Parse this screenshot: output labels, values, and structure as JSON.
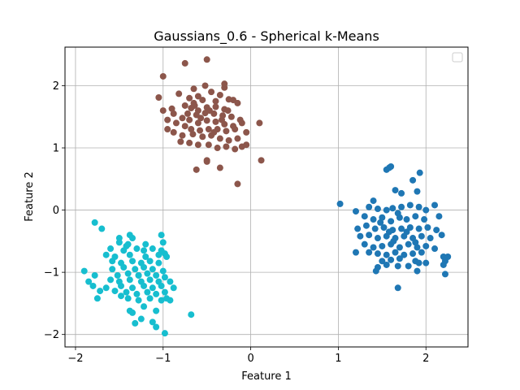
{
  "chart_data": {
    "type": "scatter",
    "title": "Gaussians_0.6 - Spherical k-Means",
    "xlabel": "Feature 1",
    "ylabel": "Feature 2",
    "xlim": [
      -2.12,
      2.48
    ],
    "ylim": [
      -2.2,
      2.62
    ],
    "xticks": [
      -2,
      -1,
      0,
      1,
      2
    ],
    "yticks": [
      -2,
      -1,
      0,
      1,
      2
    ],
    "xtick_labels": [
      "−2",
      "−1",
      "0",
      "1",
      "2"
    ],
    "ytick_labels": [
      "−2",
      "−1",
      "0",
      "1",
      "2"
    ],
    "grid": true,
    "legend": "top-right, empty",
    "series": [
      {
        "color": "#8c564b",
        "points": [
          [
            -0.5,
            2.42
          ],
          [
            -0.75,
            2.36
          ],
          [
            -1.0,
            2.15
          ],
          [
            -0.3,
            2.03
          ],
          [
            -0.3,
            1.97
          ],
          [
            -0.52,
            2.0
          ],
          [
            -0.65,
            1.95
          ],
          [
            -1.05,
            1.81
          ],
          [
            -0.82,
            1.87
          ],
          [
            -0.7,
            1.8
          ],
          [
            -0.6,
            1.83
          ],
          [
            -0.45,
            1.9
          ],
          [
            -0.35,
            1.85
          ],
          [
            -0.25,
            1.78
          ],
          [
            -0.4,
            1.75
          ],
          [
            -0.55,
            1.77
          ],
          [
            -0.65,
            1.72
          ],
          [
            -0.75,
            1.68
          ],
          [
            -0.9,
            1.63
          ],
          [
            -1.0,
            1.6
          ],
          [
            -0.68,
            1.64
          ],
          [
            -0.6,
            1.6
          ],
          [
            -0.5,
            1.65
          ],
          [
            -0.4,
            1.66
          ],
          [
            -0.3,
            1.62
          ],
          [
            -0.2,
            1.77
          ],
          [
            -0.15,
            1.72
          ],
          [
            -0.72,
            1.55
          ],
          [
            -0.62,
            1.53
          ],
          [
            -0.52,
            1.56
          ],
          [
            -0.42,
            1.55
          ],
          [
            -0.32,
            1.52
          ],
          [
            -0.22,
            1.5
          ],
          [
            -0.12,
            1.45
          ],
          [
            -0.78,
            1.48
          ],
          [
            -0.7,
            1.45
          ],
          [
            -0.6,
            1.4
          ],
          [
            -0.5,
            1.44
          ],
          [
            -0.4,
            1.42
          ],
          [
            -0.3,
            1.38
          ],
          [
            -0.2,
            1.35
          ],
          [
            -0.1,
            1.4
          ],
          [
            -0.95,
            1.45
          ],
          [
            -0.85,
            1.4
          ],
          [
            -0.75,
            1.35
          ],
          [
            -0.68,
            1.3
          ],
          [
            -0.58,
            1.28
          ],
          [
            -0.48,
            1.3
          ],
          [
            -0.38,
            1.3
          ],
          [
            -0.28,
            1.27
          ],
          [
            -0.18,
            1.3
          ],
          [
            -0.05,
            1.25
          ],
          [
            -0.88,
            1.25
          ],
          [
            -0.78,
            1.2
          ],
          [
            -0.66,
            1.22
          ],
          [
            -0.55,
            1.18
          ],
          [
            -0.45,
            1.2
          ],
          [
            -0.35,
            1.15
          ],
          [
            -0.25,
            1.12
          ],
          [
            -0.15,
            1.15
          ],
          [
            -0.05,
            1.05
          ],
          [
            0.1,
            1.4
          ],
          [
            -0.8,
            1.1
          ],
          [
            -0.7,
            1.08
          ],
          [
            -0.6,
            1.05
          ],
          [
            -0.48,
            1.05
          ],
          [
            -0.38,
            1.0
          ],
          [
            -0.28,
            1.02
          ],
          [
            -0.18,
            0.98
          ],
          [
            -0.1,
            1.02
          ],
          [
            -0.5,
            0.8
          ],
          [
            -0.5,
            0.78
          ],
          [
            -0.62,
            0.65
          ],
          [
            -0.35,
            0.68
          ],
          [
            -0.15,
            0.42
          ],
          [
            0.12,
            0.8
          ],
          [
            -0.95,
            1.3
          ],
          [
            -0.88,
            1.55
          ],
          [
            -0.57,
            1.48
          ],
          [
            -0.47,
            1.6
          ],
          [
            -0.33,
            1.45
          ],
          [
            -0.26,
            1.6
          ],
          [
            -0.64,
            1.68
          ],
          [
            -0.42,
            1.25
          ]
        ]
      },
      {
        "color": "#1f77b4",
        "points": [
          [
            1.02,
            0.1
          ],
          [
            1.2,
            -0.02
          ],
          [
            1.4,
            0.15
          ],
          [
            1.55,
            0.65
          ],
          [
            1.6,
            0.7
          ],
          [
            1.58,
            0.68
          ],
          [
            1.65,
            0.32
          ],
          [
            1.72,
            0.27
          ],
          [
            1.85,
            0.48
          ],
          [
            1.9,
            0.3
          ],
          [
            1.93,
            0.6
          ],
          [
            1.35,
            0.05
          ],
          [
            1.45,
            0.02
          ],
          [
            1.55,
            0.0
          ],
          [
            1.62,
            0.03
          ],
          [
            1.72,
            0.05
          ],
          [
            1.82,
            0.08
          ],
          [
            1.92,
            0.05
          ],
          [
            2.0,
            0.0
          ],
          [
            2.1,
            0.08
          ],
          [
            1.3,
            -0.1
          ],
          [
            1.4,
            -0.15
          ],
          [
            1.5,
            -0.12
          ],
          [
            1.6,
            -0.18
          ],
          [
            1.7,
            -0.12
          ],
          [
            1.78,
            -0.15
          ],
          [
            1.88,
            -0.1
          ],
          [
            1.98,
            -0.15
          ],
          [
            2.15,
            -0.1
          ],
          [
            1.22,
            -0.3
          ],
          [
            1.32,
            -0.25
          ],
          [
            1.42,
            -0.3
          ],
          [
            1.52,
            -0.28
          ],
          [
            1.62,
            -0.32
          ],
          [
            1.72,
            -0.3
          ],
          [
            1.82,
            -0.28
          ],
          [
            1.92,
            -0.3
          ],
          [
            2.02,
            -0.28
          ],
          [
            2.12,
            -0.32
          ],
          [
            1.25,
            -0.42
          ],
          [
            1.35,
            -0.4
          ],
          [
            1.45,
            -0.45
          ],
          [
            1.55,
            -0.42
          ],
          [
            1.65,
            -0.45
          ],
          [
            1.75,
            -0.42
          ],
          [
            1.85,
            -0.45
          ],
          [
            1.95,
            -0.42
          ],
          [
            2.05,
            -0.45
          ],
          [
            2.18,
            -0.4
          ],
          [
            1.3,
            -0.55
          ],
          [
            1.4,
            -0.6
          ],
          [
            1.5,
            -0.58
          ],
          [
            1.6,
            -0.55
          ],
          [
            1.7,
            -0.6
          ],
          [
            1.8,
            -0.55
          ],
          [
            1.9,
            -0.6
          ],
          [
            2.0,
            -0.58
          ],
          [
            2.1,
            -0.62
          ],
          [
            1.2,
            -0.68
          ],
          [
            1.35,
            -0.68
          ],
          [
            1.45,
            -0.7
          ],
          [
            1.55,
            -0.72
          ],
          [
            1.65,
            -0.68
          ],
          [
            1.75,
            -0.72
          ],
          [
            1.85,
            -0.7
          ],
          [
            1.95,
            -0.68
          ],
          [
            2.2,
            -0.75
          ],
          [
            2.25,
            -0.75
          ],
          [
            2.22,
            -0.82
          ],
          [
            2.2,
            -0.88
          ],
          [
            1.5,
            -0.82
          ],
          [
            1.6,
            -0.8
          ],
          [
            1.7,
            -0.78
          ],
          [
            1.88,
            -0.82
          ],
          [
            1.92,
            -0.85
          ],
          [
            2.0,
            -0.85
          ],
          [
            1.45,
            -0.92
          ],
          [
            1.55,
            -0.88
          ],
          [
            1.68,
            -0.9
          ],
          [
            1.8,
            -0.9
          ],
          [
            1.9,
            -0.98
          ],
          [
            2.22,
            -1.03
          ],
          [
            1.43,
            -0.98
          ],
          [
            1.68,
            -1.25
          ],
          [
            1.58,
            -0.35
          ],
          [
            1.48,
            -0.2
          ],
          [
            1.63,
            -0.5
          ],
          [
            1.78,
            -0.35
          ],
          [
            1.88,
            -0.52
          ],
          [
            1.68,
            -0.05
          ]
        ]
      },
      {
        "color": "#17becf",
        "points": [
          [
            -1.78,
            -0.2
          ],
          [
            -1.7,
            -0.3
          ],
          [
            -1.38,
            -0.4
          ],
          [
            -1.5,
            -0.45
          ],
          [
            -1.35,
            -0.45
          ],
          [
            -1.02,
            -0.4
          ],
          [
            -1.5,
            -0.52
          ],
          [
            -1.4,
            -0.55
          ],
          [
            -1.2,
            -0.55
          ],
          [
            -1.0,
            -0.52
          ],
          [
            -1.6,
            -0.62
          ],
          [
            -1.45,
            -0.65
          ],
          [
            -1.3,
            -0.62
          ],
          [
            -1.22,
            -0.65
          ],
          [
            -1.12,
            -0.62
          ],
          [
            -1.02,
            -0.65
          ],
          [
            -0.98,
            -0.7
          ],
          [
            -1.65,
            -0.72
          ],
          [
            -1.55,
            -0.75
          ],
          [
            -1.38,
            -0.72
          ],
          [
            -1.2,
            -0.75
          ],
          [
            -1.05,
            -0.72
          ],
          [
            -0.96,
            -0.75
          ],
          [
            -1.58,
            -0.82
          ],
          [
            -1.48,
            -0.85
          ],
          [
            -1.35,
            -0.82
          ],
          [
            -1.25,
            -0.85
          ],
          [
            -1.15,
            -0.82
          ],
          [
            -1.05,
            -0.85
          ],
          [
            -1.9,
            -0.98
          ],
          [
            -1.58,
            -0.95
          ],
          [
            -1.45,
            -0.92
          ],
          [
            -1.32,
            -0.95
          ],
          [
            -1.22,
            -0.92
          ],
          [
            -1.12,
            -0.95
          ],
          [
            -1.0,
            -0.98
          ],
          [
            -1.78,
            -1.05
          ],
          [
            -1.52,
            -1.05
          ],
          [
            -1.4,
            -1.02
          ],
          [
            -1.28,
            -1.05
          ],
          [
            -1.18,
            -1.02
          ],
          [
            -1.08,
            -1.05
          ],
          [
            -0.98,
            -1.08
          ],
          [
            -1.85,
            -1.15
          ],
          [
            -1.6,
            -1.12
          ],
          [
            -1.5,
            -1.15
          ],
          [
            -1.38,
            -1.12
          ],
          [
            -1.25,
            -1.15
          ],
          [
            -1.15,
            -1.12
          ],
          [
            -1.05,
            -1.15
          ],
          [
            -0.92,
            -1.15
          ],
          [
            -1.8,
            -1.22
          ],
          [
            -1.65,
            -1.25
          ],
          [
            -1.48,
            -1.22
          ],
          [
            -1.35,
            -1.25
          ],
          [
            -1.22,
            -1.22
          ],
          [
            -1.12,
            -1.25
          ],
          [
            -1.02,
            -1.22
          ],
          [
            -0.88,
            -1.25
          ],
          [
            -1.72,
            -1.3
          ],
          [
            -1.55,
            -1.3
          ],
          [
            -1.42,
            -1.32
          ],
          [
            -1.3,
            -1.35
          ],
          [
            -1.18,
            -1.32
          ],
          [
            -1.08,
            -1.35
          ],
          [
            -0.98,
            -1.32
          ],
          [
            -1.75,
            -1.42
          ],
          [
            -1.4,
            -1.42
          ],
          [
            -1.28,
            -1.45
          ],
          [
            -1.15,
            -1.42
          ],
          [
            -1.02,
            -1.45
          ],
          [
            -0.96,
            -1.42
          ],
          [
            -0.92,
            -1.45
          ],
          [
            -1.38,
            -1.62
          ],
          [
            -1.35,
            -1.65
          ],
          [
            -1.22,
            -1.55
          ],
          [
            -1.08,
            -1.62
          ],
          [
            -0.68,
            -1.68
          ],
          [
            -1.25,
            -1.75
          ],
          [
            -1.12,
            -1.8
          ],
          [
            -1.32,
            -1.82
          ],
          [
            -1.08,
            -1.88
          ],
          [
            -0.98,
            -1.98
          ],
          [
            -1.42,
            -0.58
          ],
          [
            -1.28,
            -1.05
          ],
          [
            -1.48,
            -1.38
          ]
        ]
      }
    ]
  }
}
